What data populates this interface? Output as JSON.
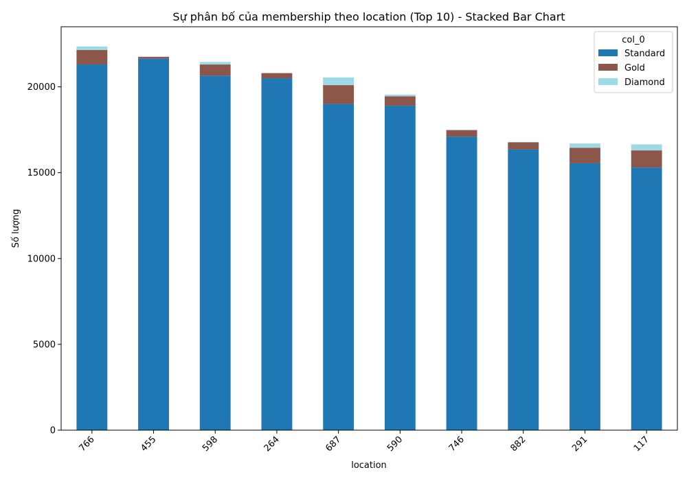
{
  "chart_data": {
    "type": "bar",
    "stacked": true,
    "title": "Sự phân bố của membership theo location (Top 10) - Stacked Bar Chart",
    "xlabel": "location",
    "ylabel": "Số lượng",
    "categories": [
      "766",
      "455",
      "598",
      "264",
      "687",
      "590",
      "746",
      "882",
      "291",
      "117"
    ],
    "series": [
      {
        "name": "Standard",
        "color": "#1f77b4",
        "values": [
          21300,
          21650,
          20650,
          20500,
          19000,
          18900,
          17100,
          16350,
          15550,
          15300
        ]
      },
      {
        "name": "Gold",
        "color": "#8c564b",
        "values": [
          850,
          100,
          650,
          300,
          1100,
          550,
          380,
          420,
          900,
          1000
        ]
      },
      {
        "name": "Diamond",
        "color": "#9edae5",
        "values": [
          200,
          0,
          150,
          0,
          450,
          100,
          20,
          20,
          250,
          350
        ]
      }
    ],
    "ylim": [
      0,
      23500
    ],
    "yticks": [
      0,
      5000,
      10000,
      15000,
      20000
    ],
    "legend": {
      "title": "col_0",
      "position": "top-right"
    },
    "grid": false
  }
}
